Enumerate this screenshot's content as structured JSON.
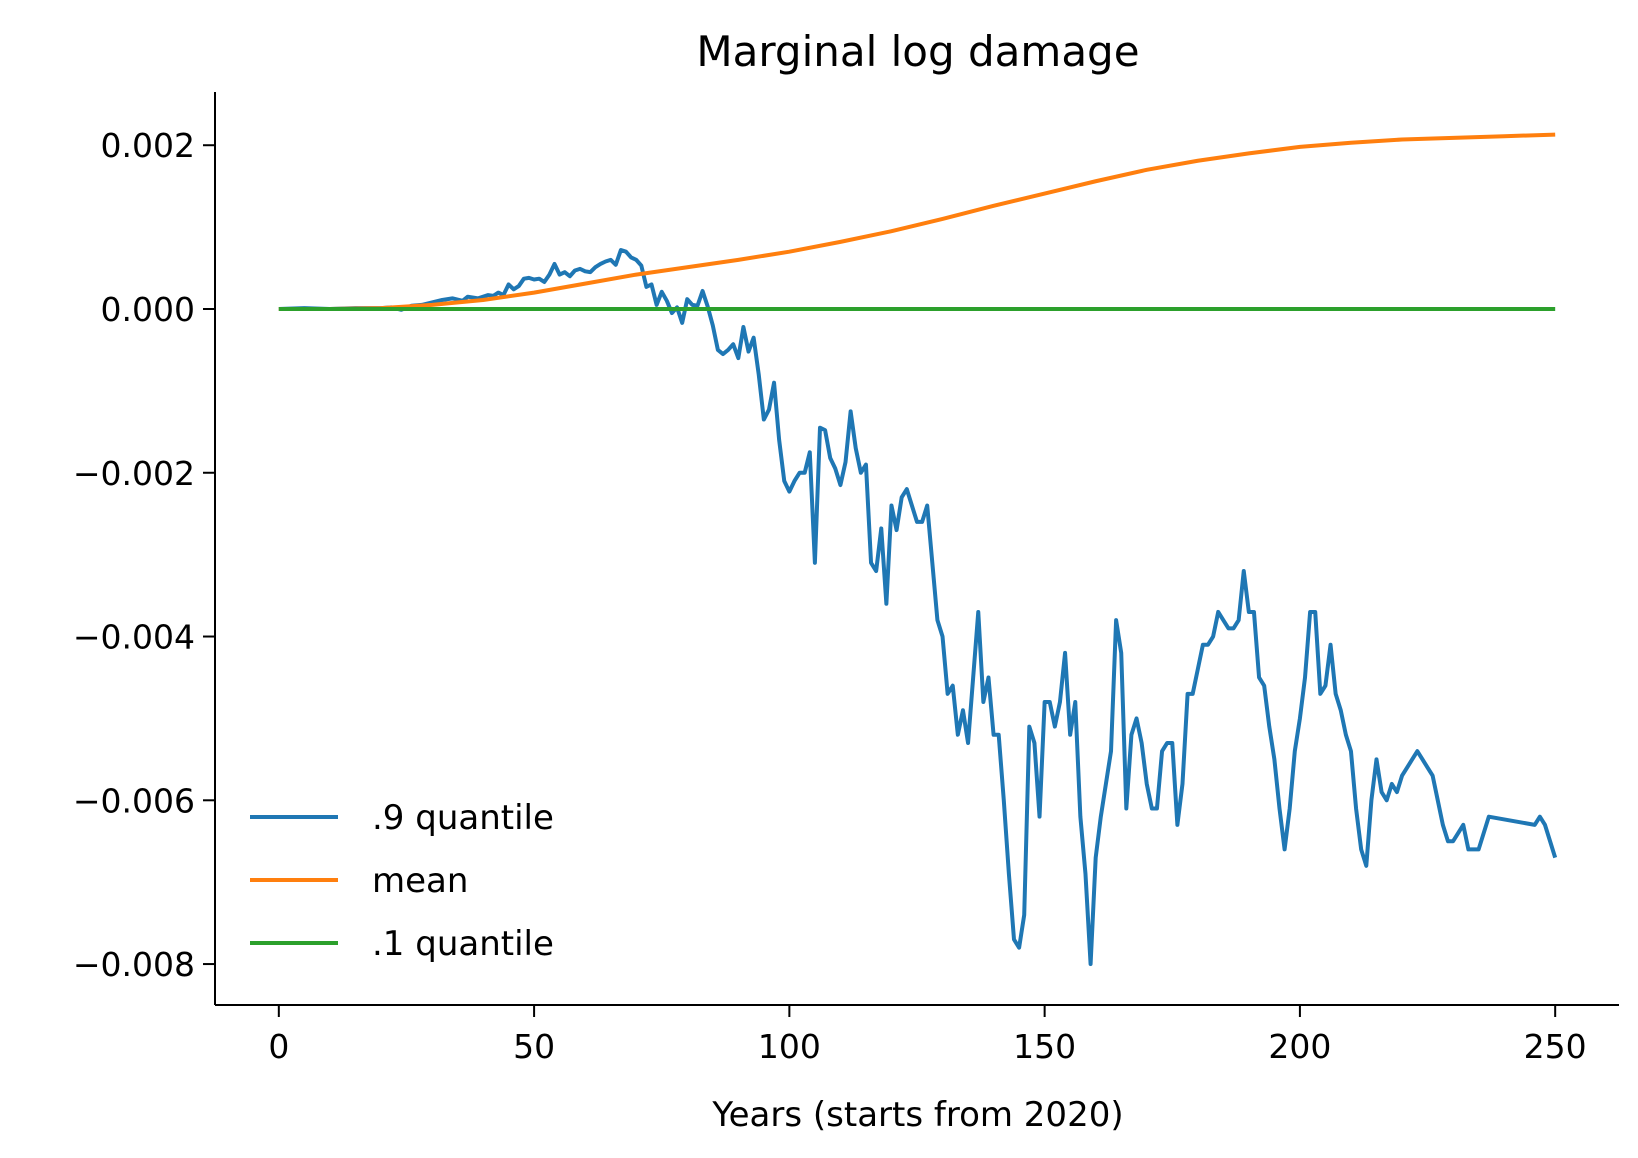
{
  "chart_data": {
    "type": "line",
    "title": "Marginal log damage",
    "xlabel": "Years (starts from 2020)",
    "ylabel": "",
    "xlim": [
      -12.5,
      262.5
    ],
    "ylim": [
      -0.0085,
      0.00265
    ],
    "x_ticks": [
      0,
      50,
      100,
      150,
      200,
      250
    ],
    "x_tick_labels": [
      "0",
      "50",
      "100",
      "150",
      "200",
      "250"
    ],
    "y_ticks": [
      0.002,
      0.0,
      -0.002,
      -0.004,
      -0.006,
      -0.008
    ],
    "y_tick_labels": [
      "0.002",
      "0.000",
      "−0.002",
      "−0.004",
      "−0.006",
      "−0.008"
    ],
    "grid": false,
    "legend": "lower-left",
    "series": [
      {
        "name": ".9 quantile",
        "color": "#1f77b4",
        "points": [
          [
            0,
            0
          ],
          [
            5,
            1e-05
          ],
          [
            10,
            0
          ],
          [
            15,
            1e-05
          ],
          [
            20,
            1e-05
          ],
          [
            22,
            2e-05
          ],
          [
            24,
            -1e-05
          ],
          [
            26,
            4e-05
          ],
          [
            28,
            5e-05
          ],
          [
            30,
            8e-05
          ],
          [
            32,
            0.00011
          ],
          [
            34,
            0.00013
          ],
          [
            36,
            0.0001
          ],
          [
            37,
            0.00015
          ],
          [
            39,
            0.00013
          ],
          [
            41,
            0.00017
          ],
          [
            42,
            0.00016
          ],
          [
            43,
            0.0002
          ],
          [
            44,
            0.00017
          ],
          [
            45,
            0.0003
          ],
          [
            46,
            0.00024
          ],
          [
            47,
            0.00028
          ],
          [
            48,
            0.00037
          ],
          [
            49,
            0.00038
          ],
          [
            50,
            0.00036
          ],
          [
            51,
            0.00037
          ],
          [
            52,
            0.00033
          ],
          [
            53,
            0.00042
          ],
          [
            54,
            0.00055
          ],
          [
            55,
            0.00042
          ],
          [
            56,
            0.00045
          ],
          [
            57,
            0.0004
          ],
          [
            58,
            0.00047
          ],
          [
            59,
            0.00049
          ],
          [
            60,
            0.00046
          ],
          [
            61,
            0.00045
          ],
          [
            62,
            0.00051
          ],
          [
            63,
            0.00055
          ],
          [
            64,
            0.00058
          ],
          [
            65,
            0.0006
          ],
          [
            66,
            0.00054
          ],
          [
            67,
            0.00072
          ],
          [
            68,
            0.0007
          ],
          [
            69,
            0.00063
          ],
          [
            70,
            0.0006
          ],
          [
            71,
            0.00053
          ],
          [
            72,
            0.00027
          ],
          [
            73,
            0.0003
          ],
          [
            74,
            5e-05
          ],
          [
            75,
            0.00021
          ],
          [
            76,
            0.0001
          ],
          [
            77,
            -5e-05
          ],
          [
            78,
            2e-05
          ],
          [
            79,
            -0.00017
          ],
          [
            80,
            0.00012
          ],
          [
            81,
            5e-05
          ],
          [
            82,
            4e-05
          ],
          [
            83,
            0.00022
          ],
          [
            84,
            3e-05
          ],
          [
            85,
            -0.0002
          ],
          [
            86,
            -0.0005
          ],
          [
            87,
            -0.00055
          ],
          [
            88,
            -0.0005
          ],
          [
            89,
            -0.00043
          ],
          [
            90,
            -0.0006
          ],
          [
            91,
            -0.00022
          ],
          [
            92,
            -0.00052
          ],
          [
            93,
            -0.00035
          ],
          [
            94,
            -0.0008
          ],
          [
            95,
            -0.00135
          ],
          [
            96,
            -0.00123
          ],
          [
            97,
            -0.0009
          ],
          [
            98,
            -0.0016
          ],
          [
            99,
            -0.0021
          ],
          [
            100,
            -0.00223
          ],
          [
            101,
            -0.0021
          ],
          [
            102,
            -0.002
          ],
          [
            103,
            -0.002
          ],
          [
            104,
            -0.00175
          ],
          [
            105,
            -0.0031
          ],
          [
            106,
            -0.00145
          ],
          [
            107,
            -0.00148
          ],
          [
            108,
            -0.00182
          ],
          [
            109,
            -0.00195
          ],
          [
            110,
            -0.00215
          ],
          [
            111,
            -0.00187
          ],
          [
            112,
            -0.00125
          ],
          [
            113,
            -0.0017
          ],
          [
            114,
            -0.002
          ],
          [
            115,
            -0.0019
          ],
          [
            116,
            -0.0031
          ],
          [
            117,
            -0.0032
          ],
          [
            118,
            -0.00268
          ],
          [
            119,
            -0.0036
          ],
          [
            120,
            -0.0024
          ],
          [
            121,
            -0.0027
          ],
          [
            122,
            -0.0023
          ],
          [
            123,
            -0.0022
          ],
          [
            124,
            -0.0024
          ],
          [
            125,
            -0.0026
          ],
          [
            126,
            -0.0026
          ],
          [
            127,
            -0.0024
          ],
          [
            128,
            -0.0031
          ],
          [
            129,
            -0.0038
          ],
          [
            130,
            -0.004
          ],
          [
            131,
            -0.0047
          ],
          [
            132,
            -0.0046
          ],
          [
            133,
            -0.0052
          ],
          [
            134,
            -0.0049
          ],
          [
            135,
            -0.0053
          ],
          [
            136,
            -0.0045
          ],
          [
            137,
            -0.0037
          ],
          [
            138,
            -0.0048
          ],
          [
            139,
            -0.0045
          ],
          [
            140,
            -0.0052
          ],
          [
            141,
            -0.0052
          ],
          [
            142,
            -0.006
          ],
          [
            143,
            -0.0069
          ],
          [
            144,
            -0.0077
          ],
          [
            145,
            -0.0078
          ],
          [
            146,
            -0.0074
          ],
          [
            147,
            -0.0051
          ],
          [
            148,
            -0.0053
          ],
          [
            149,
            -0.0062
          ],
          [
            150,
            -0.0048
          ],
          [
            151,
            -0.0048
          ],
          [
            152,
            -0.0051
          ],
          [
            153,
            -0.0048
          ],
          [
            154,
            -0.0042
          ],
          [
            155,
            -0.0052
          ],
          [
            156,
            -0.0048
          ],
          [
            157,
            -0.0062
          ],
          [
            158,
            -0.0069
          ],
          [
            159,
            -0.008
          ],
          [
            160,
            -0.0067
          ],
          [
            161,
            -0.0062
          ],
          [
            162,
            -0.0058
          ],
          [
            163,
            -0.0054
          ],
          [
            164,
            -0.0038
          ],
          [
            165,
            -0.0042
          ],
          [
            166,
            -0.0061
          ],
          [
            167,
            -0.0052
          ],
          [
            168,
            -0.005
          ],
          [
            169,
            -0.0053
          ],
          [
            170,
            -0.0058
          ],
          [
            171,
            -0.0061
          ],
          [
            172,
            -0.0061
          ],
          [
            173,
            -0.0054
          ],
          [
            174,
            -0.0053
          ],
          [
            175,
            -0.0053
          ],
          [
            176,
            -0.0063
          ],
          [
            177,
            -0.0058
          ],
          [
            178,
            -0.0047
          ],
          [
            179,
            -0.0047
          ],
          [
            180,
            -0.0044
          ],
          [
            181,
            -0.0041
          ],
          [
            182,
            -0.0041
          ],
          [
            183,
            -0.004
          ],
          [
            184,
            -0.0037
          ],
          [
            185,
            -0.0038
          ],
          [
            186,
            -0.0039
          ],
          [
            187,
            -0.0039
          ],
          [
            188,
            -0.0038
          ],
          [
            189,
            -0.0032
          ],
          [
            190,
            -0.0037
          ],
          [
            191,
            -0.0037
          ],
          [
            192,
            -0.0045
          ],
          [
            193,
            -0.0046
          ],
          [
            194,
            -0.0051
          ],
          [
            195,
            -0.0055
          ],
          [
            196,
            -0.0061
          ],
          [
            197,
            -0.0066
          ],
          [
            198,
            -0.0061
          ],
          [
            199,
            -0.0054
          ],
          [
            200,
            -0.005
          ],
          [
            201,
            -0.0045
          ],
          [
            202,
            -0.0037
          ],
          [
            203,
            -0.0037
          ],
          [
            204,
            -0.0047
          ],
          [
            205,
            -0.0046
          ],
          [
            206,
            -0.0041
          ],
          [
            207,
            -0.0047
          ],
          [
            208,
            -0.0049
          ],
          [
            209,
            -0.0052
          ],
          [
            210,
            -0.0054
          ],
          [
            211,
            -0.0061
          ],
          [
            212,
            -0.0066
          ],
          [
            213,
            -0.0068
          ],
          [
            214,
            -0.006
          ],
          [
            215,
            -0.0055
          ],
          [
            216,
            -0.0059
          ],
          [
            217,
            -0.006
          ],
          [
            218,
            -0.0058
          ],
          [
            219,
            -0.0059
          ],
          [
            220,
            -0.0057
          ],
          [
            221,
            -0.0056
          ],
          [
            222,
            -0.0055
          ],
          [
            223,
            -0.0054
          ],
          [
            224,
            -0.0055
          ],
          [
            225,
            -0.0056
          ],
          [
            226,
            -0.0057
          ],
          [
            227,
            -0.006
          ],
          [
            228,
            -0.0063
          ],
          [
            229,
            -0.0065
          ],
          [
            230,
            -0.0065
          ],
          [
            231,
            -0.0064
          ],
          [
            232,
            -0.0063
          ],
          [
            233,
            -0.0066
          ],
          [
            234,
            -0.0066
          ],
          [
            235,
            -0.0066
          ],
          [
            236,
            -0.0064
          ],
          [
            237,
            -0.0062
          ],
          [
            246,
            -0.0063
          ],
          [
            247,
            -0.0062
          ],
          [
            248,
            -0.0063
          ],
          [
            249,
            -0.0065
          ],
          [
            250,
            -0.0067
          ]
        ]
      },
      {
        "name": "mean",
        "color": "#ff7f0e",
        "points": [
          [
            0,
            0
          ],
          [
            10,
            0
          ],
          [
            20,
            1e-05
          ],
          [
            30,
            5e-05
          ],
          [
            40,
            0.00011
          ],
          [
            50,
            0.0002
          ],
          [
            60,
            0.00031
          ],
          [
            70,
            0.00042
          ],
          [
            80,
            0.00051
          ],
          [
            90,
            0.0006
          ],
          [
            100,
            0.0007
          ],
          [
            110,
            0.00082
          ],
          [
            120,
            0.00095
          ],
          [
            130,
            0.0011
          ],
          [
            140,
            0.00126
          ],
          [
            150,
            0.00141
          ],
          [
            160,
            0.00156
          ],
          [
            170,
            0.0017
          ],
          [
            180,
            0.00181
          ],
          [
            190,
            0.0019
          ],
          [
            200,
            0.00198
          ],
          [
            210,
            0.00203
          ],
          [
            220,
            0.00207
          ],
          [
            230,
            0.00209
          ],
          [
            240,
            0.00211
          ],
          [
            250,
            0.00213
          ]
        ]
      },
      {
        "name": ".1 quantile",
        "color": "#2ca02c",
        "points": [
          [
            0,
            0
          ],
          [
            250,
            0
          ]
        ]
      }
    ]
  }
}
